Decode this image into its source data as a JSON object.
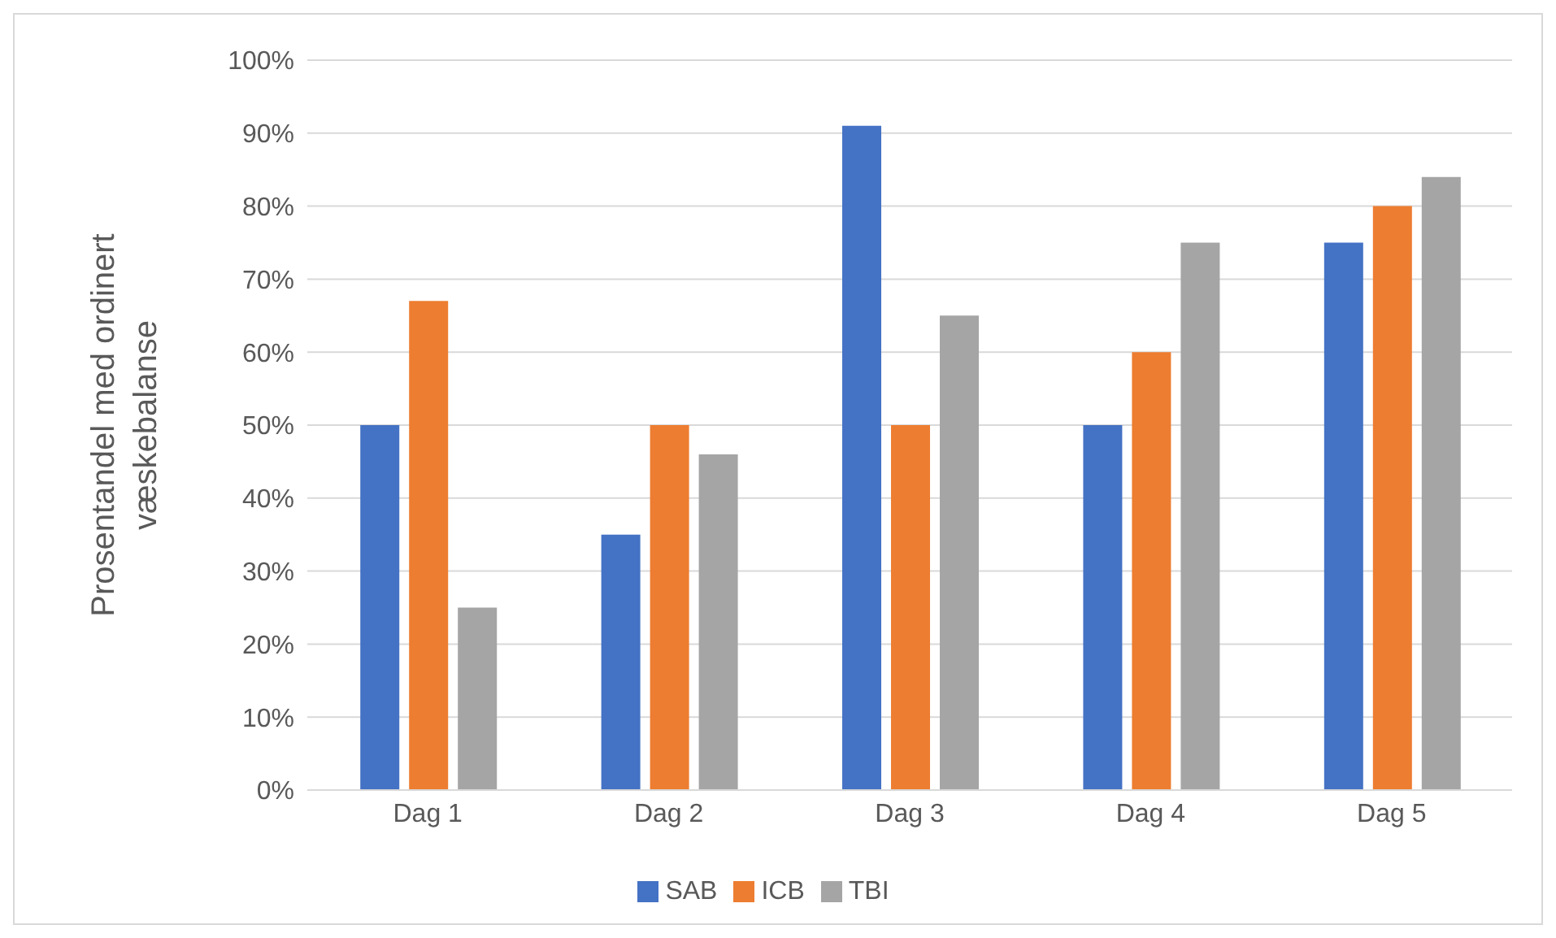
{
  "chart_data": {
    "type": "bar",
    "ylabel": "Prosentandel med ordinert væskebalanse",
    "categories": [
      "Dag 1",
      "Dag 2",
      "Dag 3",
      "Dag 4",
      "Dag 5"
    ],
    "series": [
      {
        "name": "SAB",
        "color": "#4472c4",
        "values": [
          50,
          35,
          91,
          50,
          75
        ]
      },
      {
        "name": "ICB",
        "color": "#ed7d31",
        "values": [
          67,
          50,
          50,
          60,
          80
        ]
      },
      {
        "name": "TBI",
        "color": "#a5a5a5",
        "values": [
          25,
          46,
          65,
          75,
          84
        ]
      }
    ],
    "ylim": [
      0,
      100
    ],
    "yticks": [
      {
        "value": 0,
        "label": "0%"
      },
      {
        "value": 10,
        "label": "10%"
      },
      {
        "value": 20,
        "label": "20%"
      },
      {
        "value": 30,
        "label": "30%"
      },
      {
        "value": 40,
        "label": "40%"
      },
      {
        "value": 50,
        "label": "50%"
      },
      {
        "value": 60,
        "label": "60%"
      },
      {
        "value": 70,
        "label": "70%"
      },
      {
        "value": 80,
        "label": "80%"
      },
      {
        "value": 90,
        "label": "90%"
      },
      {
        "value": 100,
        "label": "100%"
      }
    ],
    "grid": "y",
    "legend": "bottom"
  }
}
